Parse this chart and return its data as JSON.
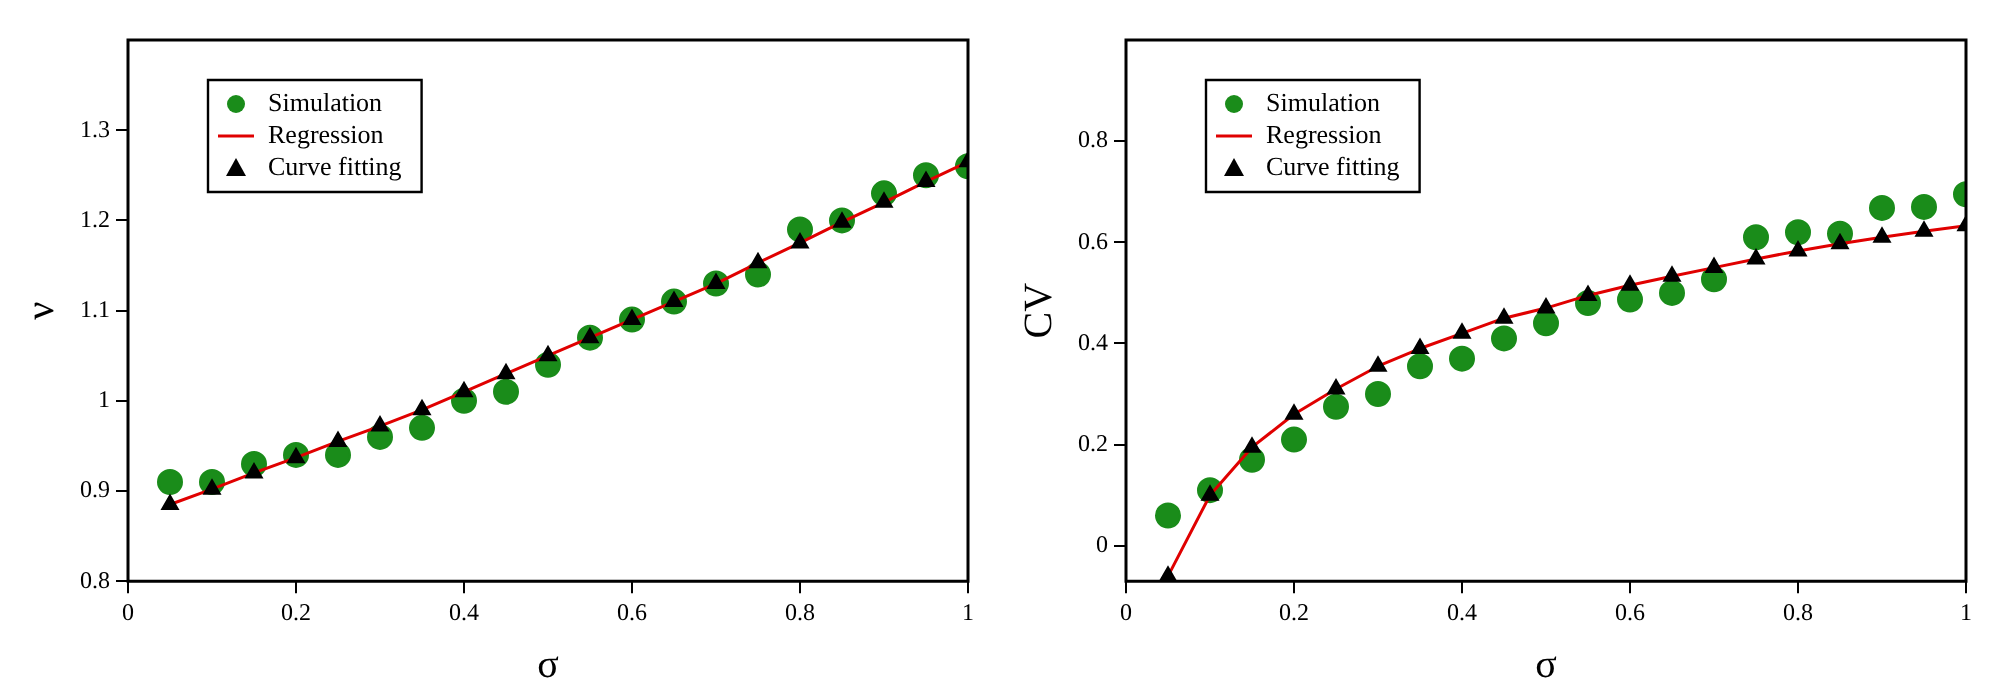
{
  "chart_data": [
    {
      "type": "scatter",
      "xlabel": "σ",
      "ylabel": "ν",
      "xlim": [
        0,
        1
      ],
      "xticks": [
        0,
        0.2,
        0.4,
        0.6,
        0.8,
        1
      ],
      "ylim": [
        0.8,
        1.4
      ],
      "yticks": [
        0.8,
        0.9,
        1,
        1.1,
        1.2,
        1.3
      ],
      "grid": false,
      "legend": "top left",
      "x": [
        0.05,
        0.1,
        0.15,
        0.2,
        0.25,
        0.3,
        0.35,
        0.4,
        0.45,
        0.5,
        0.55,
        0.6,
        0.65,
        0.7,
        0.75,
        0.8,
        0.85,
        0.9,
        0.95,
        1
      ],
      "series": [
        {
          "name": "Simulation",
          "type": "scatter",
          "marker": "circle",
          "color": "#1a8c1a",
          "values": [
            0.91,
            0.91,
            0.93,
            0.94,
            0.94,
            0.96,
            0.97,
            1.0,
            1.01,
            1.04,
            1.07,
            1.09,
            1.11,
            1.13,
            1.14,
            1.19,
            1.2,
            1.23,
            1.25,
            1.26
          ]
        },
        {
          "name": "Regression",
          "type": "line",
          "marker": "none",
          "color": "#e00000",
          "values": [
            0.885,
            0.902,
            0.92,
            0.937,
            0.955,
            0.972,
            0.99,
            1.01,
            1.03,
            1.05,
            1.07,
            1.09,
            1.11,
            1.13,
            1.153,
            1.175,
            1.198,
            1.22,
            1.243,
            1.265
          ]
        },
        {
          "name": "Curve fitting",
          "type": "scatter",
          "marker": "triangle",
          "color": "#000000",
          "values": [
            0.885,
            0.902,
            0.92,
            0.937,
            0.955,
            0.972,
            0.99,
            1.01,
            1.03,
            1.05,
            1.07,
            1.09,
            1.11,
            1.13,
            1.153,
            1.175,
            1.198,
            1.22,
            1.243,
            1.265
          ]
        }
      ]
    },
    {
      "type": "scatter",
      "xlabel": "σ",
      "ylabel": "CV",
      "xlim": [
        0,
        1
      ],
      "xticks": [
        0,
        0.2,
        0.4,
        0.6,
        0.8,
        1
      ],
      "ylim": [
        -0.07,
        1.0
      ],
      "yticks": [
        0,
        0.2,
        0.4,
        0.6,
        0.8
      ],
      "grid": false,
      "legend": "top left",
      "x": [
        0.05,
        0.1,
        0.15,
        0.2,
        0.25,
        0.3,
        0.35,
        0.4,
        0.45,
        0.5,
        0.55,
        0.6,
        0.65,
        0.7,
        0.75,
        0.8,
        0.85,
        0.9,
        0.95,
        1
      ],
      "series": [
        {
          "name": "Simulation",
          "type": "scatter",
          "marker": "circle",
          "color": "#1a8c1a",
          "values": [
            0.06,
            0.11,
            0.17,
            0.21,
            0.275,
            0.3,
            0.355,
            0.37,
            0.41,
            0.44,
            0.48,
            0.487,
            0.5,
            0.527,
            0.61,
            0.62,
            0.617,
            0.668,
            0.67,
            0.695
          ]
        },
        {
          "name": "Regression",
          "type": "line",
          "marker": "none",
          "color": "#e00000",
          "values": [
            -0.06,
            0.1,
            0.195,
            0.26,
            0.31,
            0.355,
            0.39,
            0.42,
            0.45,
            0.47,
            0.495,
            0.515,
            0.533,
            0.55,
            0.567,
            0.583,
            0.597,
            0.61,
            0.622,
            0.633
          ]
        },
        {
          "name": "Curve fitting",
          "type": "scatter",
          "marker": "triangle",
          "color": "#000000",
          "values": [
            -0.06,
            0.1,
            0.195,
            0.26,
            0.31,
            0.355,
            0.39,
            0.42,
            0.45,
            0.47,
            0.495,
            0.515,
            0.533,
            0.55,
            0.567,
            0.583,
            0.597,
            0.61,
            0.622,
            0.633
          ]
        }
      ]
    }
  ]
}
